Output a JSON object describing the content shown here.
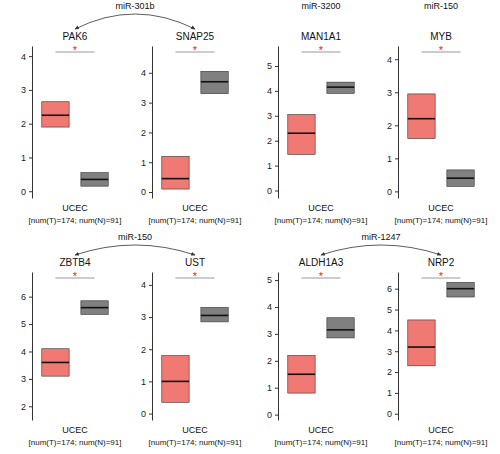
{
  "links": [
    {
      "label": "miR-301b",
      "charts": [
        0,
        1
      ]
    },
    {
      "label": "miR-3200",
      "charts": [
        2
      ]
    },
    {
      "label": "miR-150",
      "charts": [
        3
      ]
    },
    {
      "label": "miR-150",
      "charts": [
        4,
        5
      ]
    },
    {
      "label": "miR-1247",
      "charts": [
        6,
        7
      ]
    }
  ],
  "chart_data": [
    {
      "type": "box",
      "title": "PAK6",
      "x_label": "UCEC",
      "caption": "[num(T)=174; num(N)=91]",
      "annotations": [
        "*"
      ],
      "series": [
        {
          "color": "#f07a73",
          "q1": 1.9,
          "median": 2.25,
          "q3": 2.65
        },
        {
          "color": "#808080",
          "q1": 0.15,
          "median": 0.35,
          "q3": 0.55
        }
      ],
      "ylim": [
        -0.2,
        4.3
      ],
      "yticks": [
        0,
        1,
        2,
        3,
        4
      ]
    },
    {
      "type": "box",
      "title": "SNAP25",
      "x_label": "UCEC",
      "caption": "[num(T)=174; num(N)=91]",
      "annotations": [
        "*"
      ],
      "series": [
        {
          "color": "#f07a73",
          "q1": 0.1,
          "median": 0.45,
          "q3": 1.2
        },
        {
          "color": "#808080",
          "q1": 3.3,
          "median": 3.7,
          "q3": 4.05
        }
      ],
      "ylim": [
        -0.2,
        4.9
      ],
      "yticks": [
        0,
        1,
        2,
        3,
        4
      ]
    },
    {
      "type": "box",
      "title": "MAN1A1",
      "x_label": "UCEC",
      "caption": "[num(T)=174; num(N)=91]",
      "annotations": [
        "*"
      ],
      "series": [
        {
          "color": "#f07a73",
          "q1": 1.45,
          "median": 2.3,
          "q3": 3.05
        },
        {
          "color": "#808080",
          "q1": 3.9,
          "median": 4.15,
          "q3": 4.35
        }
      ],
      "ylim": [
        -0.3,
        5.8
      ],
      "yticks": [
        0,
        1,
        2,
        3,
        4,
        5
      ]
    },
    {
      "type": "box",
      "title": "MYB",
      "x_label": "UCEC",
      "caption": "[num(T)=174; num(N)=91]",
      "annotations": [
        "*"
      ],
      "series": [
        {
          "color": "#f07a73",
          "q1": 1.6,
          "median": 2.2,
          "q3": 2.95
        },
        {
          "color": "#808080",
          "q1": 0.15,
          "median": 0.4,
          "q3": 0.65
        }
      ],
      "ylim": [
        -0.2,
        4.4
      ],
      "yticks": [
        0,
        1,
        2,
        3,
        4
      ]
    },
    {
      "type": "box",
      "title": "ZBTB4",
      "x_label": "UCEC",
      "caption": "[num(T)=174; num(N)=91]",
      "annotations": [
        "*"
      ],
      "series": [
        {
          "color": "#f07a73",
          "q1": 3.1,
          "median": 3.6,
          "q3": 4.1
        },
        {
          "color": "#808080",
          "q1": 5.35,
          "median": 5.6,
          "q3": 5.85
        }
      ],
      "ylim": [
        1.5,
        6.9
      ],
      "yticks": [
        2,
        3,
        4,
        5,
        6
      ]
    },
    {
      "type": "box",
      "title": "UST",
      "x_label": "UCEC",
      "caption": "[num(T)=174; num(N)=91]",
      "annotations": [
        "*"
      ],
      "series": [
        {
          "color": "#f07a73",
          "q1": 0.35,
          "median": 1.0,
          "q3": 1.8
        },
        {
          "color": "#808080",
          "q1": 2.85,
          "median": 3.05,
          "q3": 3.3
        }
      ],
      "ylim": [
        -0.2,
        4.4
      ],
      "yticks": [
        0,
        1,
        2,
        3,
        4
      ]
    },
    {
      "type": "box",
      "title": "ALDH1A3",
      "x_label": "UCEC",
      "caption": "[num(T)=174; num(N)=91]",
      "annotations": [
        "*"
      ],
      "series": [
        {
          "color": "#f07a73",
          "q1": 0.8,
          "median": 1.5,
          "q3": 2.2
        },
        {
          "color": "#808080",
          "q1": 2.85,
          "median": 3.15,
          "q3": 3.6
        }
      ],
      "ylim": [
        -0.2,
        5.3
      ],
      "yticks": [
        0,
        1,
        2,
        3,
        4,
        5
      ]
    },
    {
      "type": "box",
      "title": "NRP2",
      "x_label": "UCEC",
      "caption": "[num(T)=174; num(N)=91]",
      "annotations": [
        "*"
      ],
      "series": [
        {
          "color": "#f07a73",
          "q1": 2.3,
          "median": 3.2,
          "q3": 4.5
        },
        {
          "color": "#808080",
          "q1": 5.6,
          "median": 6.0,
          "q3": 6.3
        }
      ],
      "ylim": [
        -0.3,
        6.8
      ],
      "yticks": [
        0,
        1,
        2,
        3,
        4,
        5,
        6
      ]
    }
  ]
}
